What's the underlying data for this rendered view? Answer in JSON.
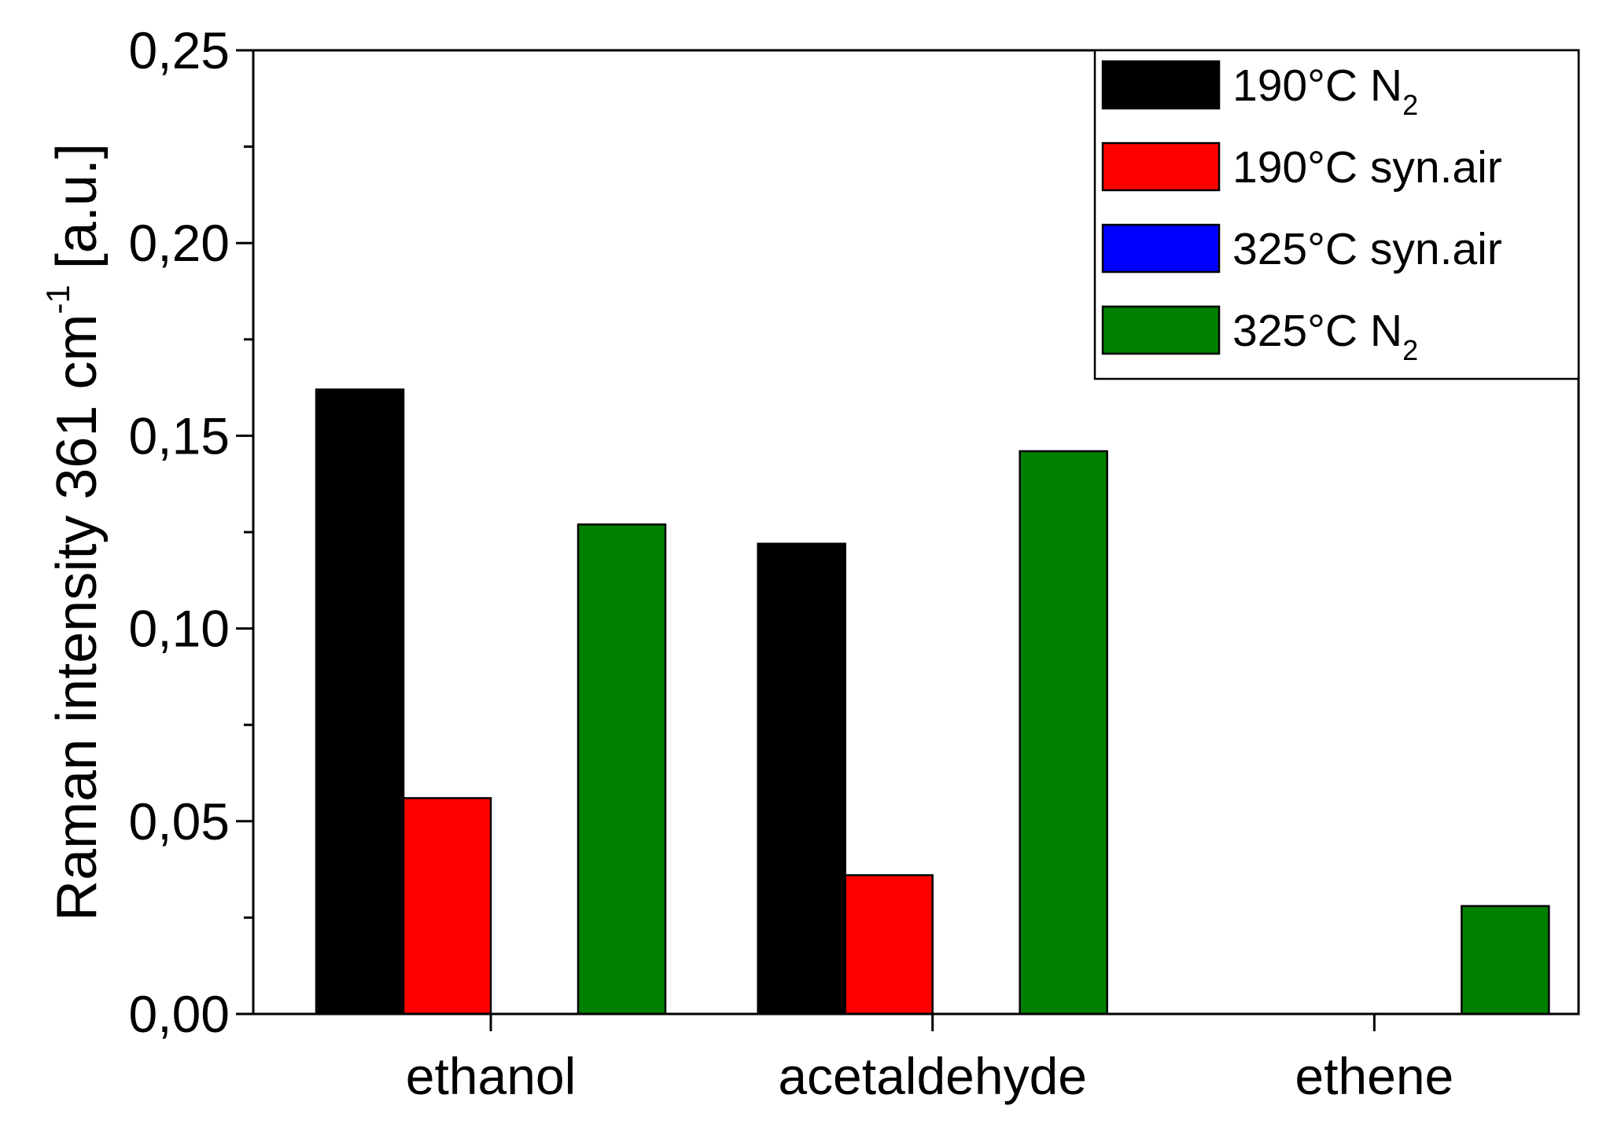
{
  "chart_data": {
    "type": "bar",
    "title": "",
    "categories": [
      "ethanol",
      "acetaldehyde",
      "ethene"
    ],
    "series": [
      {
        "name": "190°C N",
        "subscript": "2",
        "color": "#000000",
        "values": [
          0.162,
          0.122,
          0.0
        ]
      },
      {
        "name": "190°C syn.air",
        "subscript": "",
        "color": "#ff0000",
        "values": [
          0.056,
          0.036,
          0.0
        ]
      },
      {
        "name": "325°C syn.air",
        "subscript": "",
        "color": "#0000ff",
        "values": [
          0.0,
          0.0,
          0.0
        ]
      },
      {
        "name": "325°C N",
        "subscript": "2",
        "color": "#008000",
        "values": [
          0.127,
          0.146,
          0.028
        ]
      }
    ],
    "xlabel": "",
    "ylabel": {
      "main": "Raman intensity 361 cm",
      "superscript": "-1",
      "unit": " [a.u.]"
    },
    "ylim": [
      0,
      0.25
    ],
    "yticks": [
      0,
      0.05,
      0.1,
      0.15,
      0.2,
      0.25
    ],
    "ytick_labels": [
      "0,00",
      "0,05",
      "0,10",
      "0,15",
      "0,20",
      "0,25"
    ],
    "legend_position": "top-right",
    "grid": false
  }
}
